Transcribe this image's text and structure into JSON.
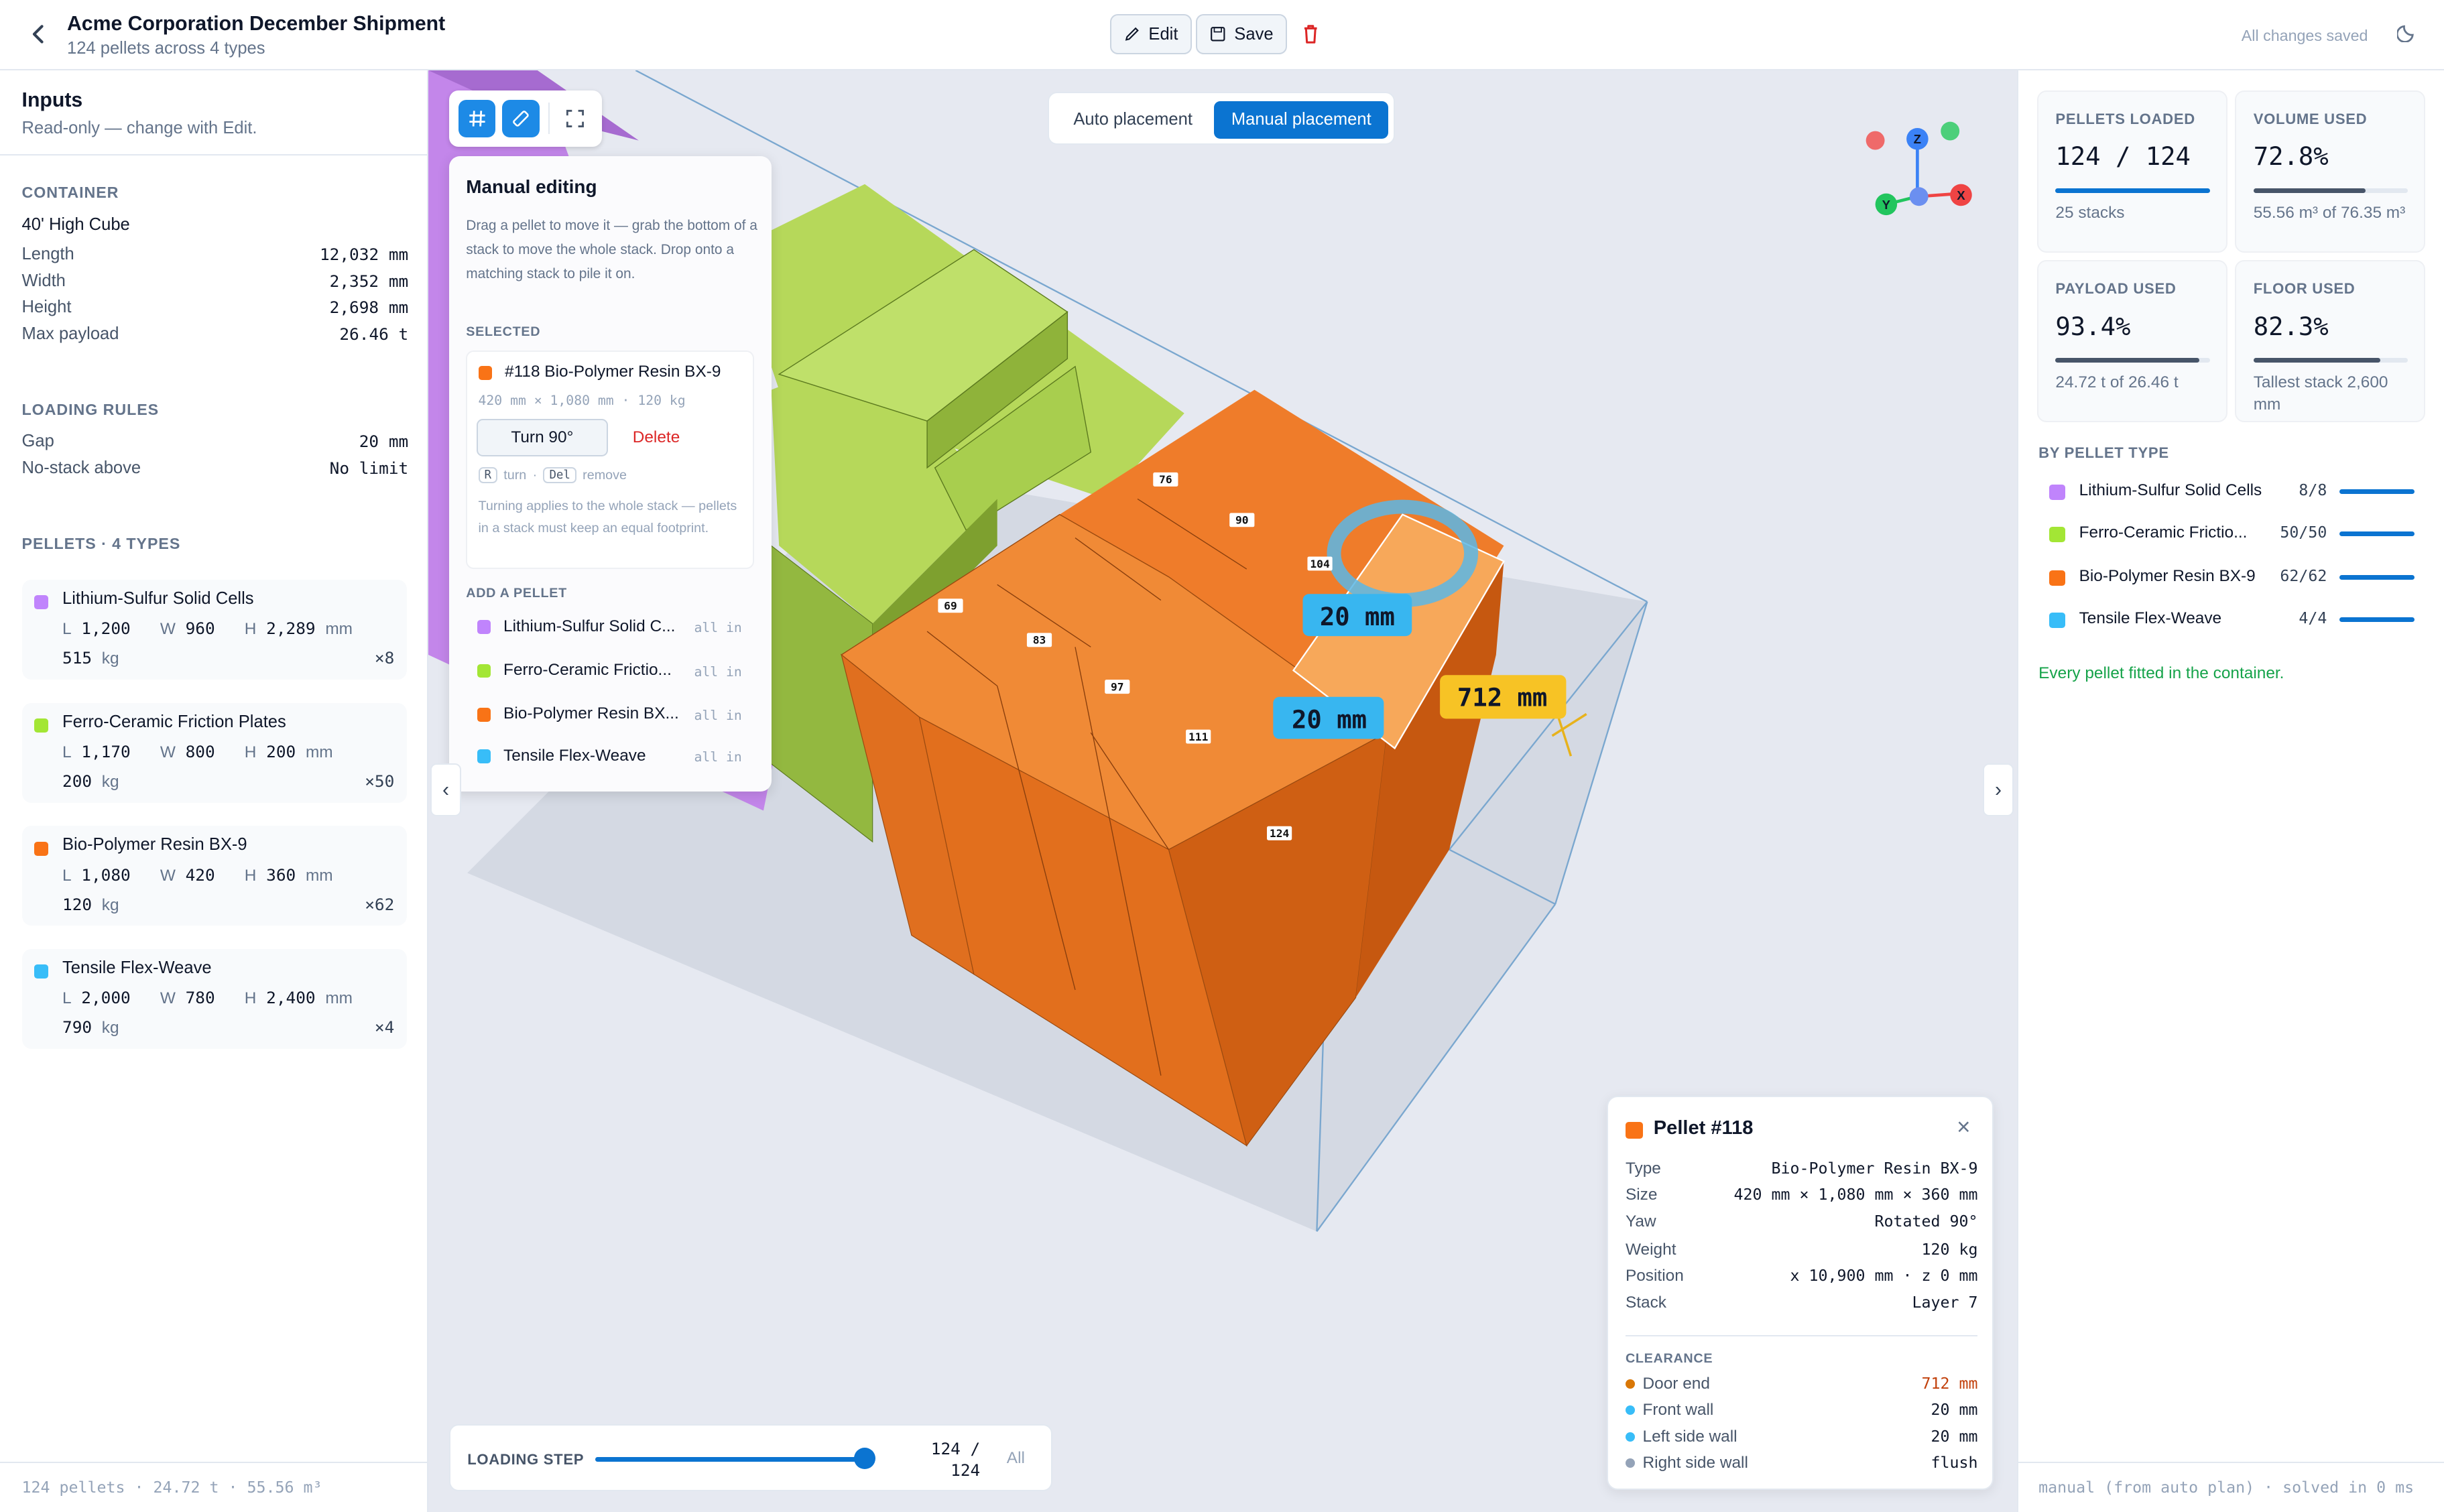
{
  "header": {
    "title": "Acme Corporation December Shipment",
    "subtitle": "124 pellets across 4 types",
    "edit_label": "Edit",
    "save_label": "Save",
    "saved_status": "All changes saved"
  },
  "inputs": {
    "title": "Inputs",
    "readonly_note": "Read-only — change with Edit.",
    "container_label": "CONTAINER",
    "container_type": "40' High Cube",
    "container_specs": [
      {
        "key": "Length",
        "value": "12,032 mm"
      },
      {
        "key": "Width",
        "value": "2,352 mm"
      },
      {
        "key": "Height",
        "value": "2,698 mm"
      },
      {
        "key": "Max payload",
        "value": "26.46 t"
      }
    ],
    "rules_label": "LOADING RULES",
    "rules": [
      {
        "key": "Gap",
        "value": "20 mm"
      },
      {
        "key": "No-stack above",
        "value": "No limit"
      }
    ],
    "pellets_label": "PELLETS · 4 TYPES",
    "pellet_types": [
      {
        "name": "Lithium-Sulfur Solid Cells",
        "l": "1,200",
        "w": "960",
        "h": "2,289",
        "kg": "515",
        "count": "×8",
        "color": "#c084fc"
      },
      {
        "name": "Ferro-Ceramic Friction Plates",
        "l": "1,170",
        "w": "800",
        "h": "200",
        "kg": "200",
        "count": "×50",
        "color": "#a3e635"
      },
      {
        "name": "Bio-Polymer Resin BX-9",
        "l": "1,080",
        "w": "420",
        "h": "360",
        "kg": "120",
        "count": "×62",
        "color": "#f97316"
      },
      {
        "name": "Tensile Flex-Weave",
        "l": "2,000",
        "w": "780",
        "h": "2,400",
        "kg": "790",
        "count": "×4",
        "color": "#38bdf8"
      }
    ],
    "dim_l": "L",
    "dim_w": "W",
    "dim_h": "H",
    "unit_mm": "mm",
    "unit_kg": "kg",
    "footer": "124 pellets · 24.72 t · 55.56 m³"
  },
  "viewport": {
    "auto_label": "Auto placement",
    "manual_label": "Manual placement",
    "measure_gap_1": "20 mm",
    "measure_gap_2": "20 mm",
    "measure_door": "712 mm",
    "stack_labels": [
      "76",
      "90",
      "104",
      "69",
      "83",
      "97",
      "111",
      "124"
    ],
    "axis": {
      "z": "Z",
      "x": "X",
      "y": "Y"
    },
    "collapse_left": "‹",
    "collapse_right": "›"
  },
  "manual_editing": {
    "title": "Manual editing",
    "help": "Drag a pellet to move it — grab the bottom of a stack to move the whole stack. Drop onto a matching stack to pile it on.",
    "selected_label": "SELECTED",
    "selected_name": "#118 Bio-Polymer Resin BX-9",
    "selected_size": "420 mm × 1,080 mm · 120 kg",
    "turn_label": "Turn 90°",
    "delete_label": "Delete",
    "key_r": "R",
    "key_r_action": "turn",
    "key_del": "Del",
    "key_del_action": "remove",
    "note": "Turning applies to the whole stack — pellets in a stack must keep an equal footprint.",
    "add_label": "ADD A PELLET",
    "add_items": [
      {
        "name": "Lithium-Sulfur Solid C...",
        "status": "all in",
        "color": "#c084fc"
      },
      {
        "name": "Ferro-Ceramic Frictio...",
        "status": "all in",
        "color": "#a3e635"
      },
      {
        "name": "Bio-Polymer Resin BX...",
        "status": "all in",
        "color": "#f97316"
      },
      {
        "name": "Tensile Flex-Weave",
        "status": "all in",
        "color": "#38bdf8"
      }
    ]
  },
  "loading_step": {
    "label": "LOADING STEP",
    "value": "124 / 124",
    "all_label": "All",
    "fraction": 1.0
  },
  "pellet_detail": {
    "title": "Pellet #118",
    "close": "×",
    "rows": [
      {
        "key": "Type",
        "value": "Bio-Polymer Resin BX-9"
      },
      {
        "key": "Size",
        "value": "420 mm × 1,080 mm × 360 mm"
      },
      {
        "key": "Yaw",
        "value": "Rotated 90°"
      },
      {
        "key": "Weight",
        "value": "120 kg"
      },
      {
        "key": "Position",
        "value": "x 10,900 mm · z 0 mm"
      },
      {
        "key": "Stack",
        "value": "Layer 7"
      }
    ],
    "clearance_label": "CLEARANCE",
    "clearance": [
      {
        "key": "Door end",
        "value": "712 mm",
        "dot": "#d97706",
        "valcolor": "#c2410c"
      },
      {
        "key": "Front wall",
        "value": "20 mm",
        "dot": "#38bdf8",
        "valcolor": "#0f172a"
      },
      {
        "key": "Left side wall",
        "value": "20 mm",
        "dot": "#38bdf8",
        "valcolor": "#0f172a"
      },
      {
        "key": "Right side wall",
        "value": "flush",
        "dot": "#94a3b8",
        "valcolor": "#0f172a"
      }
    ]
  },
  "stats": [
    {
      "label": "PELLETS LOADED",
      "value": "124 / 124",
      "sub": "25 stacks",
      "fraction": 1.0,
      "color": "#0b74d1"
    },
    {
      "label": "VOLUME USED",
      "value": "72.8%",
      "sub": "55.56 m³ of 76.35 m³",
      "fraction": 0.728,
      "color": "#475569"
    },
    {
      "label": "PAYLOAD USED",
      "value": "93.4%",
      "sub": "24.72 t of 26.46 t",
      "fraction": 0.934,
      "color": "#475569"
    },
    {
      "label": "FLOOR USED",
      "value": "82.3%",
      "sub": "Tallest stack 2,600 mm",
      "fraction": 0.823,
      "color": "#475569"
    }
  ],
  "by_type": {
    "label": "BY PELLET TYPE",
    "rows": [
      {
        "name": "Lithium-Sulfur Solid Cells",
        "count": "8/8",
        "color": "#c084fc"
      },
      {
        "name": "Ferro-Ceramic Frictio...",
        "count": "50/50",
        "color": "#a3e635"
      },
      {
        "name": "Bio-Polymer Resin BX-9",
        "count": "62/62",
        "color": "#f97316"
      },
      {
        "name": "Tensile Flex-Weave",
        "count": "4/4",
        "color": "#38bdf8"
      }
    ],
    "status": "Every pellet fitted in the container."
  },
  "right_footer": "manual (from auto plan) · solved in 0 ms"
}
